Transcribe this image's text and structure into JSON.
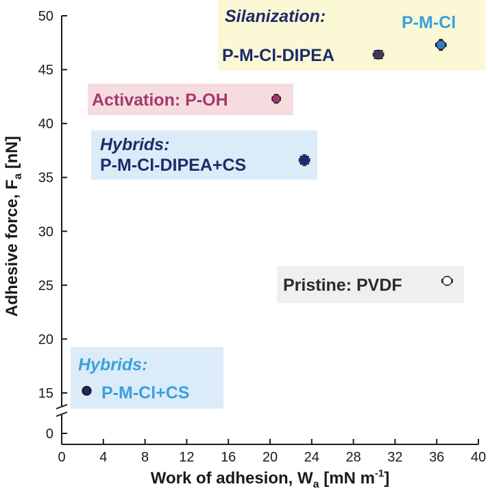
{
  "chart_data": {
    "type": "scatter",
    "xlabel": "Work of adhesion, W",
    "xlabel_sub": "a",
    "xlabel_unit": " [mN m",
    "xlabel_sup": "-1",
    "xlabel_end": "]",
    "ylabel": "Adhesive force, F",
    "ylabel_sub": "a",
    "ylabel_unit": " [nN]",
    "xlim": [
      0,
      40
    ],
    "ylim_broken": [
      0,
      13
    ],
    "ylim_main": [
      13,
      50
    ],
    "x_ticks": [
      0,
      4,
      8,
      12,
      16,
      20,
      24,
      28,
      32,
      36,
      40
    ],
    "y_ticks": [
      0,
      15,
      20,
      25,
      30,
      35,
      40,
      45,
      50
    ],
    "axis_break": true,
    "points": [
      {
        "name": "P-M-Cl",
        "x": 36.4,
        "y": 47.3,
        "xerr": 0.5,
        "yerr": 0.5,
        "marker": "crosshair-circle",
        "color": "#2e7ec9"
      },
      {
        "name": "P-M-Cl-DIPEA",
        "x": 30.4,
        "y": 46.4,
        "xerr": 0.5,
        "yerr": 0.4,
        "marker": "square",
        "color": "#3a3a6a"
      },
      {
        "name": "P-OH",
        "x": 20.6,
        "y": 42.3,
        "xerr": 0.4,
        "yerr": 0.4,
        "marker": "circle",
        "color": "#a03a6a"
      },
      {
        "name": "P-M-Cl-DIPEA+CS",
        "x": 23.3,
        "y": 36.6,
        "xerr": 0.5,
        "yerr": 0.5,
        "marker": "square",
        "color": "#1a2a7a"
      },
      {
        "name": "PVDF",
        "x": 37.0,
        "y": 25.4,
        "xerr": 0.5,
        "yerr": 0.4,
        "marker": "crosshair-circle",
        "color": "#7a7a7a"
      },
      {
        "name": "P-M-Cl+CS",
        "x": 2.4,
        "y": 15.2,
        "xerr": 0.3,
        "yerr": 0.3,
        "marker": "crosshair-circle",
        "color": "#1a2a7a"
      }
    ],
    "annotations": [
      {
        "id": "silanization",
        "lines": [
          {
            "text": "Silanization:",
            "italic": true,
            "color": "#1f2a6a"
          },
          {
            "text": "P-M-Cl-DIPEA",
            "italic": false,
            "color": "#1f2a6a"
          },
          {
            "text": "P-M-Cl",
            "italic": false,
            "color": "#3aa0e0"
          }
        ],
        "box_color": "#fbf8d6"
      },
      {
        "id": "activation",
        "lines": [
          {
            "text": "Activation: P-OH",
            "italic": false,
            "color": "#a33a6a"
          }
        ],
        "box_color": "#f7dcdf"
      },
      {
        "id": "hybrids-dipea",
        "lines": [
          {
            "text": "Hybrids:",
            "italic": true,
            "color": "#1f2a6a"
          },
          {
            "text": "P-M-Cl-DIPEA+CS",
            "italic": false,
            "color": "#1f2a6a"
          }
        ],
        "box_color": "#dcebf8"
      },
      {
        "id": "pristine",
        "lines": [
          {
            "text": "Pristine: PVDF",
            "italic": false,
            "color": "#2a2a2a"
          }
        ],
        "box_color": "#efefef"
      },
      {
        "id": "hybrids-cs",
        "lines": [
          {
            "text": "Hybrids:",
            "italic": true,
            "color": "#3aa0e0"
          },
          {
            "text": "P-M-Cl+CS",
            "italic": false,
            "color": "#3aa0e0"
          }
        ],
        "box_color": "#dcebf8"
      }
    ]
  }
}
